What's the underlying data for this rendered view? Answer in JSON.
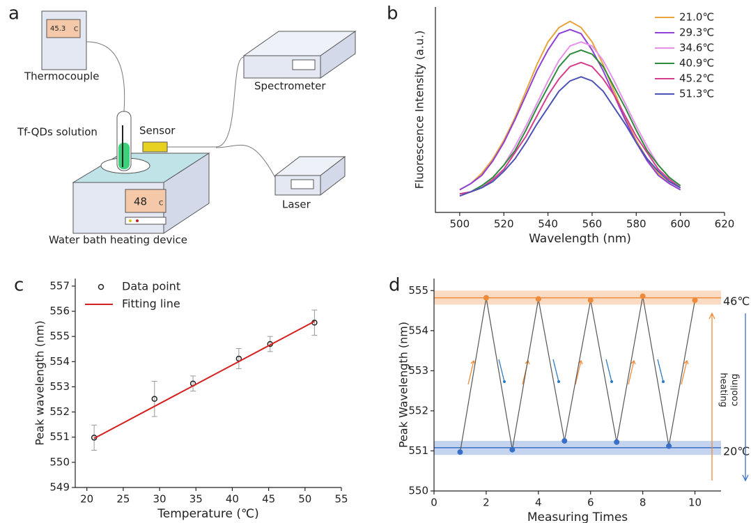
{
  "diagram": {
    "panel_label": "a",
    "thermocouple_reading": "45.3",
    "thermocouple_unit": "C",
    "thermocouple": "Thermocouple",
    "spectrometer": "Spectrometer",
    "solution": "Tf-QDs solution",
    "sensor": "Sensor",
    "bath_reading": "48",
    "bath_unit": "C",
    "laser": "Laser",
    "bath": "Water bath heating device"
  },
  "chart_data": [
    {
      "type": "line",
      "panel_label": "b",
      "xlabel": "Wavelength (nm)",
      "ylabel": "Fluorescence Intensity (a.u.)",
      "x": [
        500,
        505,
        510,
        515,
        520,
        525,
        530,
        535,
        540,
        545,
        550,
        555,
        560,
        565,
        570,
        575,
        580,
        585,
        590,
        595,
        600
      ],
      "series": [
        {
          "name": "21.0℃",
          "color": "#e8a33d",
          "values": [
            0.11,
            0.14,
            0.19,
            0.26,
            0.35,
            0.46,
            0.59,
            0.72,
            0.83,
            0.9,
            0.93,
            0.9,
            0.83,
            0.72,
            0.59,
            0.46,
            0.35,
            0.26,
            0.19,
            0.14,
            0.11
          ]
        },
        {
          "name": "29.3℃",
          "color": "#8e3fd6",
          "values": [
            0.11,
            0.14,
            0.18,
            0.25,
            0.34,
            0.45,
            0.57,
            0.69,
            0.79,
            0.87,
            0.89,
            0.87,
            0.79,
            0.69,
            0.57,
            0.45,
            0.34,
            0.25,
            0.18,
            0.14,
            0.11
          ]
        },
        {
          "name": "34.6℃",
          "color": "#e590ea",
          "values": [
            0.09,
            0.1,
            0.13,
            0.17,
            0.23,
            0.32,
            0.42,
            0.53,
            0.64,
            0.74,
            0.81,
            0.83,
            0.81,
            0.74,
            0.64,
            0.53,
            0.42,
            0.32,
            0.23,
            0.17,
            0.13
          ]
        },
        {
          "name": "40.9℃",
          "color": "#2e8b3e",
          "values": [
            0.09,
            0.1,
            0.13,
            0.17,
            0.23,
            0.3,
            0.4,
            0.51,
            0.61,
            0.71,
            0.77,
            0.79,
            0.77,
            0.71,
            0.61,
            0.51,
            0.4,
            0.3,
            0.23,
            0.17,
            0.13
          ]
        },
        {
          "name": "45.2℃",
          "color": "#d43d8c",
          "values": [
            0.09,
            0.1,
            0.12,
            0.16,
            0.21,
            0.29,
            0.37,
            0.47,
            0.57,
            0.65,
            0.71,
            0.73,
            0.71,
            0.65,
            0.57,
            0.47,
            0.37,
            0.29,
            0.21,
            0.16,
            0.12
          ]
        },
        {
          "name": "51.3℃",
          "color": "#4b52b5",
          "values": [
            0.08,
            0.1,
            0.12,
            0.15,
            0.2,
            0.26,
            0.34,
            0.43,
            0.51,
            0.59,
            0.64,
            0.66,
            0.64,
            0.59,
            0.51,
            0.43,
            0.34,
            0.26,
            0.2,
            0.15,
            0.12
          ]
        }
      ],
      "xlim": [
        489,
        620
      ],
      "ylim": [
        0,
        1
      ],
      "xticks": [
        500,
        520,
        540,
        560,
        580,
        600,
        620
      ],
      "legend": "upper right"
    },
    {
      "type": "scatter",
      "panel_label": "c",
      "xlabel": "Temperature (℃)",
      "ylabel": "Peak wavelength (nm)",
      "series": [
        {
          "name": "Data point",
          "color": "#222222",
          "x": [
            21.0,
            29.3,
            34.6,
            40.9,
            45.2,
            51.3
          ],
          "values": [
            550.98,
            552.52,
            553.13,
            554.12,
            554.7,
            555.55
          ],
          "errors": [
            0.5,
            0.7,
            0.3,
            0.4,
            0.3,
            0.5
          ]
        },
        {
          "name": "Fitting line",
          "color": "#d62020",
          "kind": "line",
          "x": [
            21.0,
            51.3
          ],
          "values": [
            550.95,
            555.6
          ]
        }
      ],
      "xlim": [
        18.4,
        55
      ],
      "ylim": [
        549,
        557.3
      ],
      "xticks": [
        20,
        25,
        30,
        35,
        40,
        45,
        50,
        55
      ],
      "yticks": [
        549,
        550,
        551,
        552,
        553,
        554,
        555,
        556,
        557
      ],
      "legend": "upper left"
    },
    {
      "type": "line",
      "panel_label": "d",
      "xlabel": "Measuring Times",
      "ylabel": "Peak Wavelength (nm)",
      "x": [
        1,
        2,
        3,
        4,
        5,
        6,
        7,
        8,
        9,
        10
      ],
      "series": [
        {
          "color": "#555555",
          "values": [
            550.97,
            554.82,
            551.03,
            554.79,
            551.25,
            554.76,
            551.22,
            554.86,
            551.12,
            554.76
          ],
          "marker_colors": [
            "#3a6fc7",
            "#ee8a3a",
            "#3a6fc7",
            "#ee8a3a",
            "#3a6fc7",
            "#ee8a3a",
            "#3a6fc7",
            "#ee8a3a",
            "#3a6fc7",
            "#ee8a3a"
          ]
        }
      ],
      "bands": [
        {
          "label": "46℃",
          "color": "#ee8a3a",
          "value": 554.82,
          "lower": 554.65,
          "upper": 555.0
        },
        {
          "label": "20℃",
          "color": "#3a6fc7",
          "value": 551.08,
          "lower": 550.9,
          "upper": 551.25
        }
      ],
      "heating": "heating",
      "cooling": "cooling",
      "xlim": [
        0,
        11.0
      ],
      "ylim": [
        550,
        555.3
      ],
      "xticks": [
        0,
        2,
        4,
        6,
        8,
        10
      ],
      "yticks": [
        550,
        551,
        552,
        553,
        554,
        555
      ]
    }
  ]
}
